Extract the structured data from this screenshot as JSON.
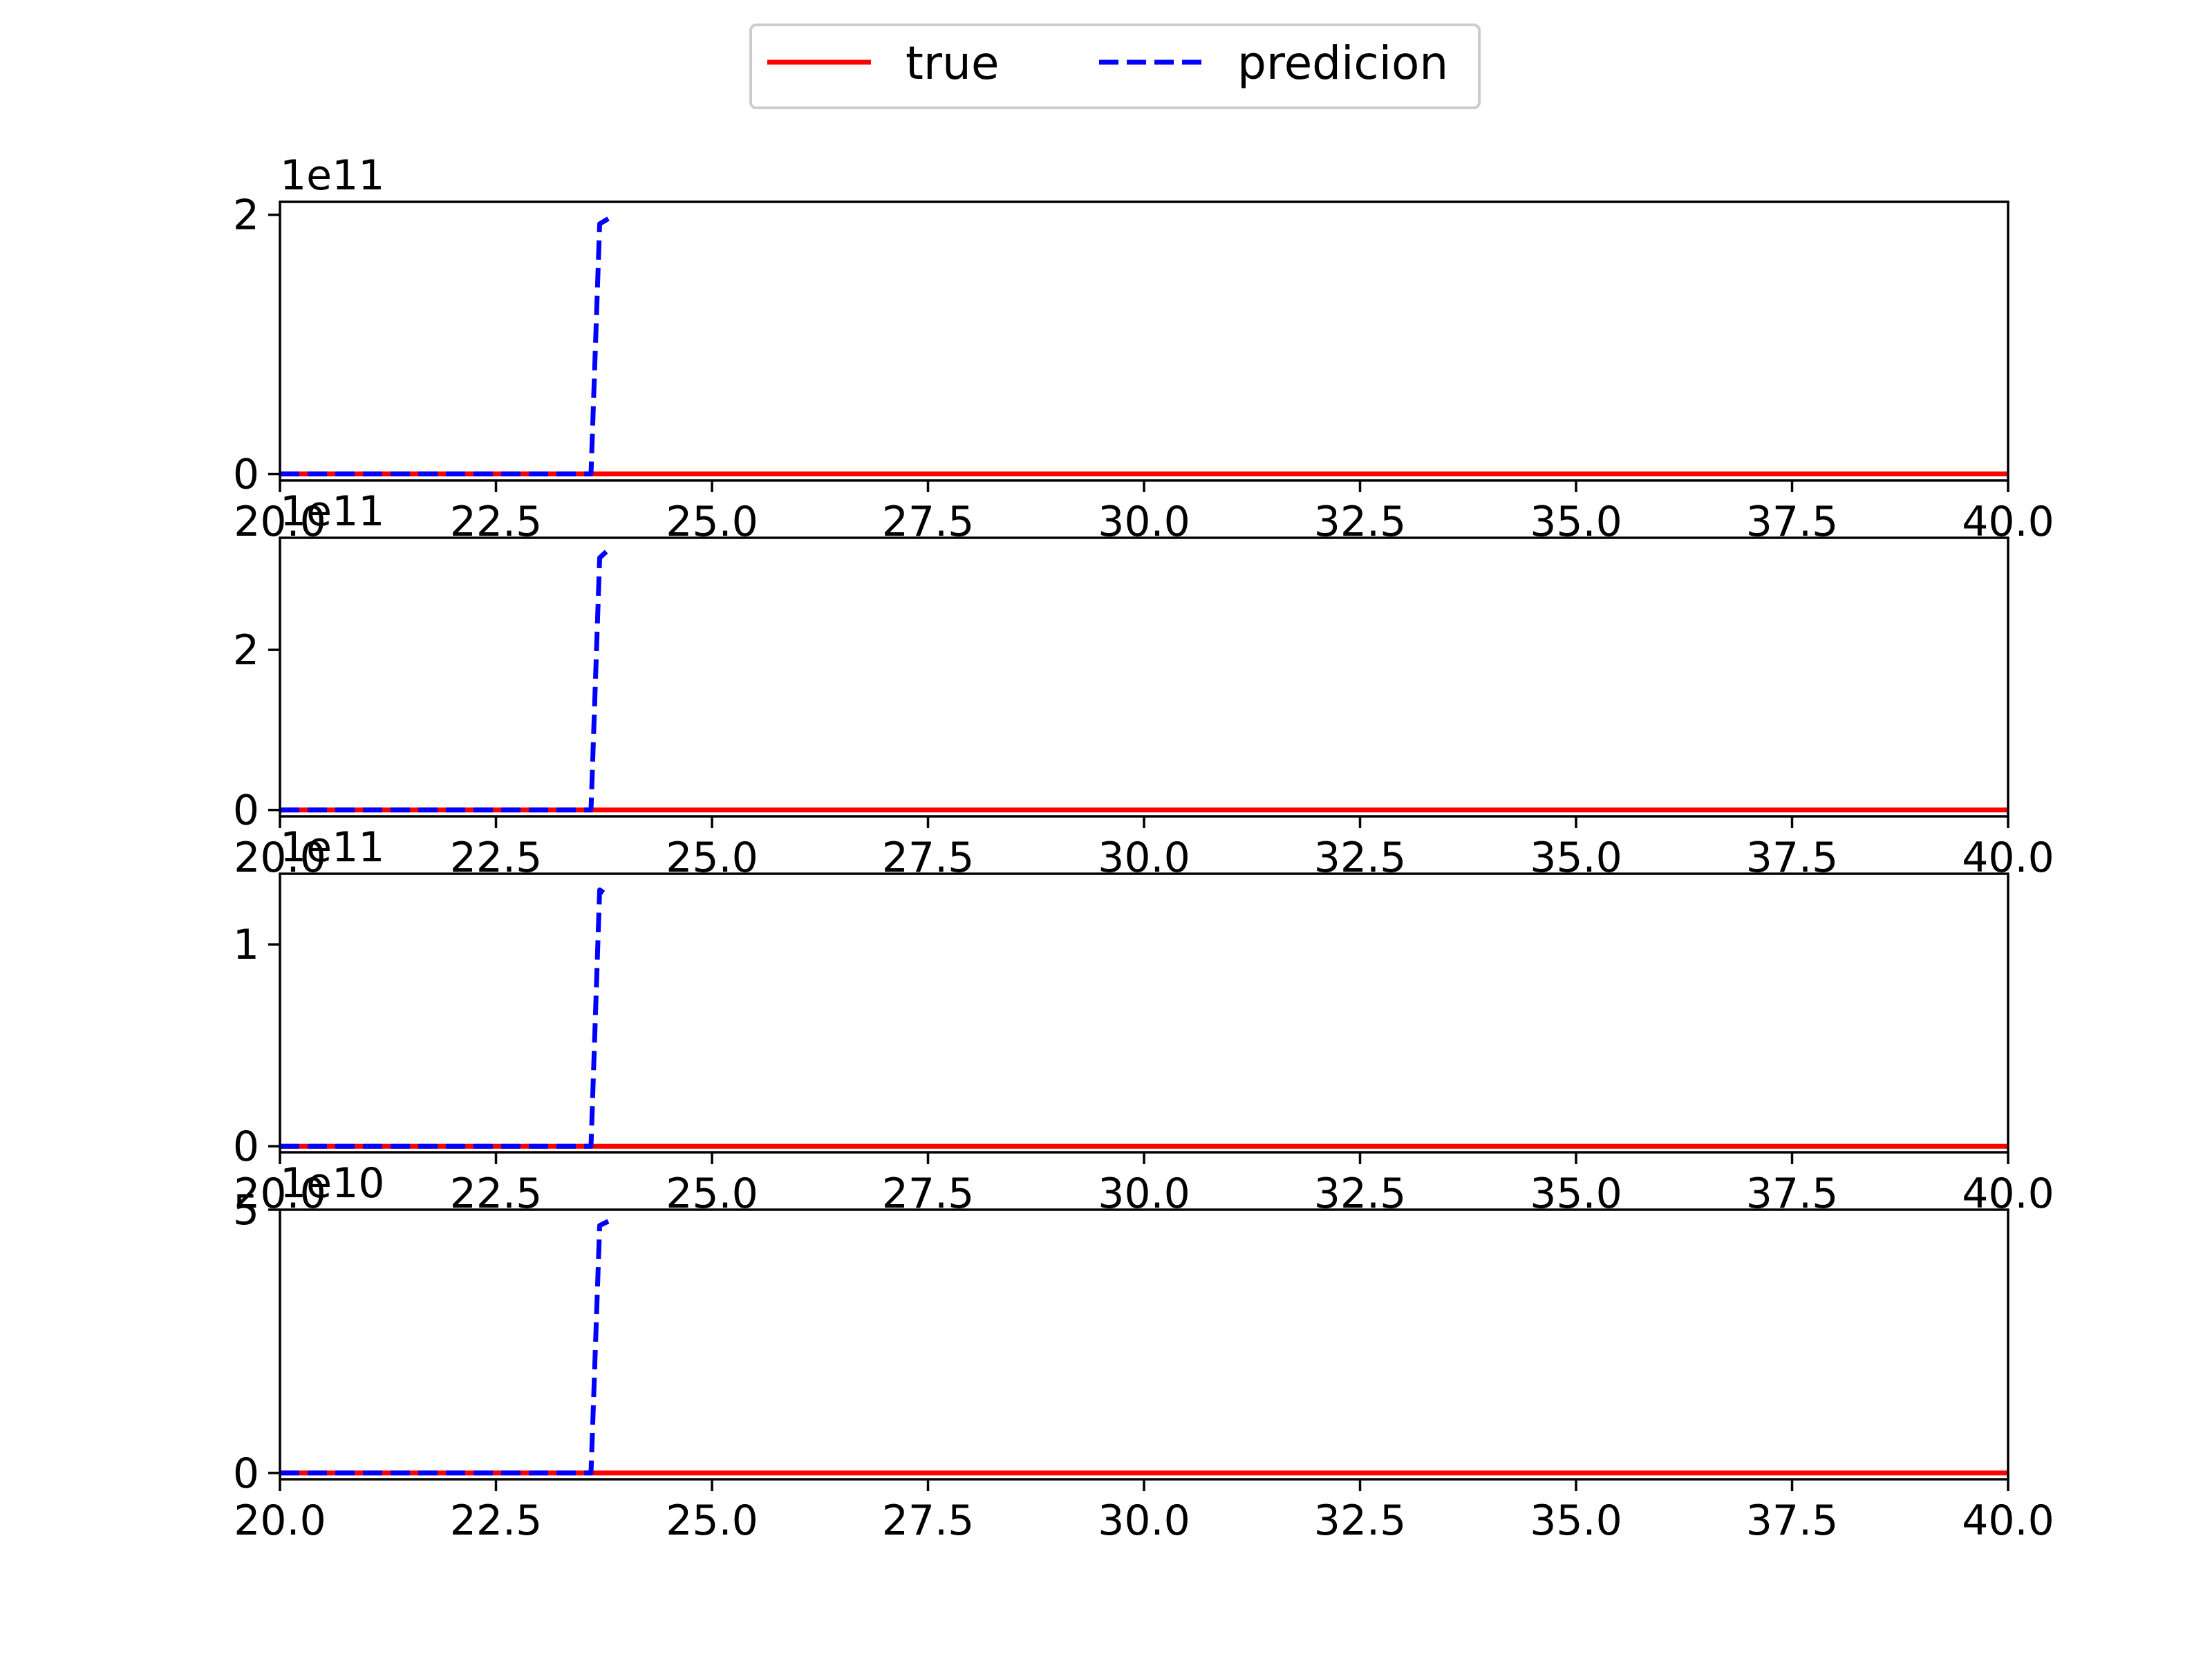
{
  "chart_data": {
    "type": "line",
    "legend": {
      "placement": "top-center",
      "entries": [
        {
          "name": "true",
          "color": "#ff0000",
          "style": "solid"
        },
        {
          "name": "predicion",
          "color": "#0000ff",
          "style": "dashed"
        }
      ]
    },
    "xlim": [
      20.0,
      40.0
    ],
    "xticks": [
      "20.0",
      "22.5",
      "25.0",
      "27.5",
      "30.0",
      "32.5",
      "35.0",
      "37.5",
      "40.0"
    ],
    "grid": false,
    "subplots": [
      {
        "offset_text": "1e11",
        "ylim": [
          -0.05,
          2.1
        ],
        "yticks": [
          {
            "value": 0,
            "label": "0"
          },
          {
            "value": 2,
            "label": "2"
          }
        ],
        "series": [
          {
            "name": "true",
            "x": [
              20.0,
              40.0
            ],
            "y": [
              0,
              0
            ]
          },
          {
            "name": "predicion",
            "x": [
              20.0,
              23.6,
              23.7,
              23.8
            ],
            "y": [
              0,
              0,
              1.93,
              1.97
            ]
          }
        ]
      },
      {
        "offset_text": "1e11",
        "ylim": [
          -0.08,
          3.4
        ],
        "yticks": [
          {
            "value": 0,
            "label": "0"
          },
          {
            "value": 2,
            "label": "2"
          }
        ],
        "series": [
          {
            "name": "true",
            "x": [
              20.0,
              40.0
            ],
            "y": [
              0,
              0
            ]
          },
          {
            "name": "predicion",
            "x": [
              20.0,
              23.6,
              23.7,
              23.8
            ],
            "y": [
              0,
              0,
              3.15,
              3.25
            ]
          }
        ]
      },
      {
        "offset_text": "1e11",
        "ylim": [
          -0.03,
          1.35
        ],
        "yticks": [
          {
            "value": 0,
            "label": "0"
          },
          {
            "value": 1,
            "label": "1"
          }
        ],
        "series": [
          {
            "name": "true",
            "x": [
              20.0,
              40.0
            ],
            "y": [
              0,
              0
            ]
          },
          {
            "name": "predicion",
            "x": [
              20.0,
              23.6,
              23.7,
              23.8
            ],
            "y": [
              0,
              0,
              1.27,
              1.24
            ]
          }
        ]
      },
      {
        "offset_text": "1e10",
        "ylim": [
          -0.12,
          5.0
        ],
        "yticks": [
          {
            "value": 0,
            "label": "0"
          },
          {
            "value": 5,
            "label": "5"
          }
        ],
        "series": [
          {
            "name": "true",
            "x": [
              20.0,
              40.0
            ],
            "y": [
              0,
              0
            ]
          },
          {
            "name": "predicion",
            "x": [
              20.0,
              23.6,
              23.7,
              23.8
            ],
            "y": [
              0,
              0,
              4.7,
              4.78
            ]
          }
        ]
      }
    ]
  }
}
